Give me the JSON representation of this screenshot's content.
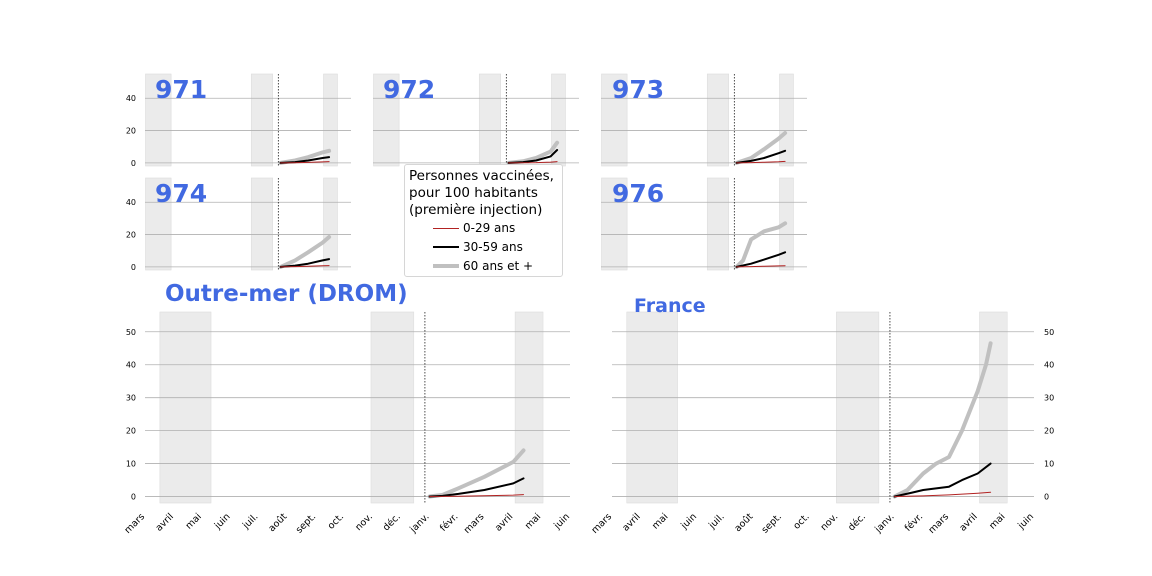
{
  "chart_data": [
    {
      "type": "line",
      "title": "971",
      "yticks": [
        0,
        20,
        40
      ],
      "series": [
        {
          "name": "0-29 ans",
          "x": [
            "2021-01-01",
            "2021-02-01",
            "2021-03-01",
            "2021-04-01",
            "2021-04-15"
          ],
          "values": [
            0,
            0.1,
            0.3,
            0.6,
            0.8
          ]
        },
        {
          "name": "30-59 ans",
          "x": [
            "2021-01-01",
            "2021-02-01",
            "2021-03-01",
            "2021-04-01",
            "2021-04-15"
          ],
          "values": [
            0,
            0.5,
            1.5,
            3.0,
            3.6
          ]
        },
        {
          "name": "60 ans et +",
          "x": [
            "2021-01-01",
            "2021-02-01",
            "2021-03-01",
            "2021-04-01",
            "2021-04-15"
          ],
          "values": [
            0,
            1.5,
            3.5,
            6.5,
            7.5
          ]
        }
      ]
    },
    {
      "type": "line",
      "title": "972",
      "yticks": [
        0,
        20,
        40
      ],
      "series": [
        {
          "name": "0-29 ans",
          "x": [
            "2021-01-01",
            "2021-02-01",
            "2021-03-01",
            "2021-04-01",
            "2021-04-15"
          ],
          "values": [
            0,
            0.1,
            0.2,
            0.5,
            0.8
          ]
        },
        {
          "name": "30-59 ans",
          "x": [
            "2021-01-01",
            "2021-02-01",
            "2021-03-01",
            "2021-04-01",
            "2021-04-15"
          ],
          "values": [
            0,
            0.5,
            1.5,
            4.0,
            8.0
          ]
        },
        {
          "name": "60 ans et +",
          "x": [
            "2021-01-01",
            "2021-02-01",
            "2021-03-01",
            "2021-04-01",
            "2021-04-15"
          ],
          "values": [
            0,
            1.0,
            3.0,
            7.0,
            12.5
          ]
        }
      ]
    },
    {
      "type": "line",
      "title": "973",
      "yticks": [
        0,
        20,
        40
      ],
      "series": [
        {
          "name": "0-29 ans",
          "x": [
            "2021-01-01",
            "2021-02-01",
            "2021-03-01",
            "2021-04-01",
            "2021-04-15"
          ],
          "values": [
            0,
            0.2,
            0.4,
            0.7,
            0.9
          ]
        },
        {
          "name": "30-59 ans",
          "x": [
            "2021-01-01",
            "2021-02-01",
            "2021-03-01",
            "2021-04-01",
            "2021-04-15"
          ],
          "values": [
            0,
            1.2,
            3.0,
            6.0,
            7.5
          ]
        },
        {
          "name": "60 ans et +",
          "x": [
            "2021-01-01",
            "2021-02-01",
            "2021-03-01",
            "2021-04-01",
            "2021-04-15"
          ],
          "values": [
            0,
            3.0,
            8.5,
            15.0,
            18.5
          ]
        }
      ]
    },
    {
      "type": "line",
      "title": "974",
      "yticks": [
        0,
        20,
        40
      ],
      "series": [
        {
          "name": "0-29 ans",
          "x": [
            "2021-01-01",
            "2021-02-01",
            "2021-03-01",
            "2021-04-01",
            "2021-04-15"
          ],
          "values": [
            0,
            0.2,
            0.4,
            0.7,
            0.8
          ]
        },
        {
          "name": "30-59 ans",
          "x": [
            "2021-01-01",
            "2021-02-01",
            "2021-03-01",
            "2021-04-01",
            "2021-04-15"
          ],
          "values": [
            0,
            0.8,
            2.0,
            4.0,
            4.8
          ]
        },
        {
          "name": "60 ans et +",
          "x": [
            "2021-01-01",
            "2021-02-01",
            "2021-03-01",
            "2021-04-01",
            "2021-04-15"
          ],
          "values": [
            0,
            4.0,
            9.0,
            15.0,
            18.5
          ]
        }
      ]
    },
    {
      "type": "line",
      "title": "976",
      "yticks": [
        0,
        20,
        40
      ],
      "series": [
        {
          "name": "0-29 ans",
          "x": [
            "2021-01-01",
            "2021-02-01",
            "2021-03-01",
            "2021-04-01",
            "2021-04-15"
          ],
          "values": [
            0,
            0.2,
            0.4,
            0.6,
            0.7
          ]
        },
        {
          "name": "30-59 ans",
          "x": [
            "2021-01-01",
            "2021-02-01",
            "2021-03-01",
            "2021-04-01",
            "2021-04-15"
          ],
          "values": [
            0,
            2.0,
            4.5,
            7.5,
            9.0
          ]
        },
        {
          "name": "60 ans et +",
          "x": [
            "2021-01-01",
            "2021-01-15",
            "2021-02-01",
            "2021-03-01",
            "2021-04-01",
            "2021-04-15"
          ],
          "values": [
            0,
            4.0,
            17.0,
            22.0,
            24.5,
            27.0
          ]
        }
      ]
    },
    {
      "type": "line",
      "title": "Outre-mer (DROM)",
      "xticks": [
        "mars",
        "avril",
        "mai",
        "juin",
        "juil.",
        "août",
        "sept.",
        "oct.",
        "nov.",
        "déc.",
        "janv.",
        "févr.",
        "mars",
        "avril",
        "mai",
        "juin"
      ],
      "yticks": [
        0,
        10,
        20,
        30,
        40,
        50
      ],
      "series": [
        {
          "name": "0-29 ans",
          "x": [
            "2021-01-01",
            "2021-02-01",
            "2021-03-01",
            "2021-04-01",
            "2021-04-12"
          ],
          "values": [
            0,
            0.1,
            0.25,
            0.45,
            0.6
          ]
        },
        {
          "name": "30-59 ans",
          "x": [
            "2021-01-01",
            "2021-01-15",
            "2021-02-01",
            "2021-03-01",
            "2021-04-01",
            "2021-04-12"
          ],
          "values": [
            0,
            0.2,
            0.8,
            2.0,
            4.0,
            5.5
          ]
        },
        {
          "name": "60 ans et +",
          "x": [
            "2021-01-01",
            "2021-01-15",
            "2021-02-01",
            "2021-03-01",
            "2021-04-01",
            "2021-04-12"
          ],
          "values": [
            0,
            0.5,
            2.5,
            6.0,
            10.5,
            14.0
          ]
        }
      ]
    },
    {
      "type": "line",
      "title": "France",
      "xticks": [
        "mars",
        "avril",
        "mai",
        "juin",
        "juil.",
        "août",
        "sept.",
        "oct.",
        "nov.",
        "déc.",
        "janv.",
        "févr.",
        "mars",
        "avril",
        "mai",
        "juin"
      ],
      "yticks": [
        0,
        10,
        20,
        30,
        40,
        50
      ],
      "series": [
        {
          "name": "0-29 ans",
          "x": [
            "2021-01-01",
            "2021-02-01",
            "2021-03-01",
            "2021-04-01",
            "2021-04-15"
          ],
          "values": [
            0,
            0.2,
            0.5,
            1.0,
            1.3
          ]
        },
        {
          "name": "30-59 ans",
          "x": [
            "2021-01-01",
            "2021-01-20",
            "2021-02-01",
            "2021-03-01",
            "2021-03-15",
            "2021-04-01",
            "2021-04-15"
          ],
          "values": [
            0,
            1.2,
            2.0,
            3.0,
            5.0,
            7.0,
            10.0
          ]
        },
        {
          "name": "60 ans et +",
          "x": [
            "2021-01-01",
            "2021-01-15",
            "2021-02-01",
            "2021-02-15",
            "2021-03-01",
            "2021-03-15",
            "2021-04-01",
            "2021-04-10",
            "2021-04-15"
          ],
          "values": [
            0,
            2.0,
            7.0,
            10.0,
            12.0,
            20.0,
            32.0,
            40.0,
            46.5
          ]
        }
      ]
    }
  ],
  "legend": {
    "title_lines": [
      "Personnes vaccinées,",
      "pour 100 habitants",
      "(première injection)"
    ],
    "entries": [
      {
        "label": "0-29 ans",
        "color": "#b22222"
      },
      {
        "label": "30-59 ans",
        "color": "#000000"
      },
      {
        "label": "60 ans et +",
        "color": "#c0c0c0"
      }
    ]
  },
  "colors": {
    "title": "#4169e1",
    "grid": "#b0b0b0",
    "shade": "#ebebeb"
  }
}
